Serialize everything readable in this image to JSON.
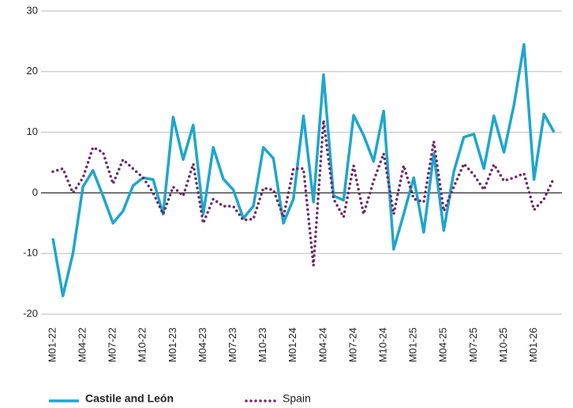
{
  "chart_data": {
    "type": "line",
    "categories": [
      "M01-22",
      null,
      null,
      "M04-22",
      null,
      null,
      "M07-22",
      null,
      null,
      "M10-22",
      null,
      null,
      "M01-23",
      null,
      null,
      "M04-23",
      null,
      null,
      "M07-23",
      null,
      null,
      "M10-23",
      null,
      null,
      "M01-24",
      null,
      null,
      "M04-24",
      null,
      null,
      "M07-24",
      null,
      null,
      "M10-24",
      null,
      null,
      "M01-25",
      null,
      null,
      "M04-25",
      null,
      null,
      "M07-25",
      null,
      null,
      "M10-25",
      null,
      null,
      "M01-26",
      null,
      null
    ],
    "series": [
      {
        "name": "Castile and León",
        "color": "#1ea6cf",
        "values": [
          -7.5,
          -17,
          -10,
          1,
          3.7,
          -0.5,
          -5,
          -3,
          1.2,
          2.5,
          2.2,
          -3.5,
          12.5,
          5.5,
          11.2,
          -3.5,
          7.5,
          2.3,
          0.5,
          -4.2,
          -2.2,
          7.5,
          5.7,
          -5,
          -1,
          12.7,
          -1.5,
          19.5,
          -0.5,
          -1.2,
          12.8,
          9.5,
          5.2,
          13.5,
          -9.3,
          -3.5,
          2.5,
          -6.5,
          6.5,
          -6.2,
          3.5,
          9.2,
          9.7,
          4,
          12.7,
          6.7,
          14.5,
          24.5,
          2.2,
          13,
          10
        ]
      },
      {
        "name": "Spain",
        "color": "#6e2a6b",
        "values": [
          3.5,
          4,
          0,
          2.5,
          7.5,
          6.7,
          1.5,
          5.5,
          4,
          2.5,
          0,
          -3.5,
          1,
          -0.5,
          4.8,
          -5,
          -1,
          -2.2,
          -2.2,
          -4.5,
          -4.3,
          0.8,
          0.5,
          -4,
          4,
          4,
          -12,
          12,
          -1,
          -4,
          4.5,
          -3.5,
          2,
          6.5,
          -3.5,
          4.5,
          -1,
          -1.5,
          8.5,
          -3,
          1,
          4.8,
          3,
          0.5,
          4.7,
          2,
          2.5,
          3.2,
          -2.8,
          -1,
          2.5
        ]
      }
    ],
    "ylim": [
      -20,
      30
    ],
    "yticks": [
      -20,
      -10,
      0,
      10,
      20,
      30
    ],
    "grid": true,
    "legend": "bottom"
  }
}
